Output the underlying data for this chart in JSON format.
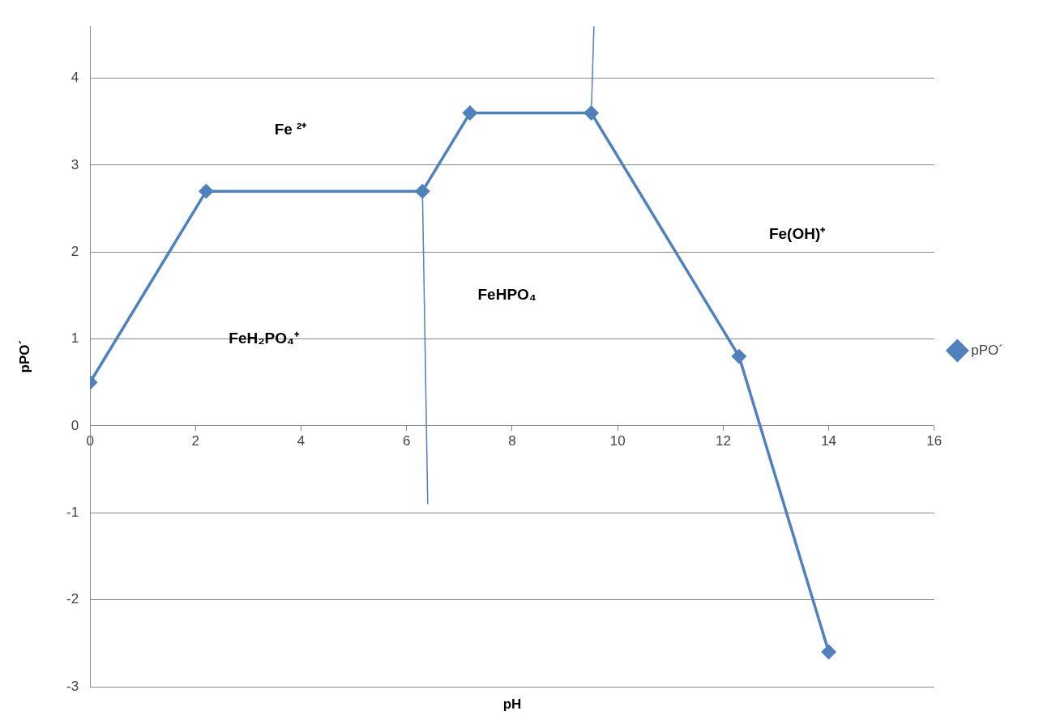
{
  "chart_data": {
    "type": "line",
    "xlabel": "pH",
    "ylabel": "pPO´",
    "xlim": [
      0,
      16
    ],
    "xticks": [
      0,
      2,
      4,
      6,
      8,
      10,
      12,
      14,
      16
    ],
    "ylim": [
      -3,
      4.6
    ],
    "yticks": [
      -3,
      -2,
      -1,
      0,
      1,
      2,
      3,
      4
    ],
    "grid": "y",
    "legend": "right",
    "marker": "diamond",
    "line_style": "solid",
    "series": [
      {
        "name": "pPO´",
        "color": "#4f81bd",
        "x": [
          0,
          2.2,
          6.3,
          7.2,
          9.5,
          12.3,
          14
        ],
        "values": [
          0.5,
          2.7,
          2.7,
          3.6,
          3.6,
          0.8,
          -2.6
        ]
      },
      {
        "color": "#4f81bd",
        "marker": "none",
        "x": [
          6.3,
          6.4
        ],
        "values": [
          2.7,
          -0.9
        ]
      },
      {
        "color": "#4f81bd",
        "marker": "none",
        "x": [
          9.5,
          9.55
        ],
        "values": [
          3.6,
          4.6
        ]
      }
    ],
    "annotations": [
      "Fe ²⁺",
      "FeH₂PO₄⁺",
      "FeHPO₄",
      "Fe(OH)⁺"
    ]
  }
}
